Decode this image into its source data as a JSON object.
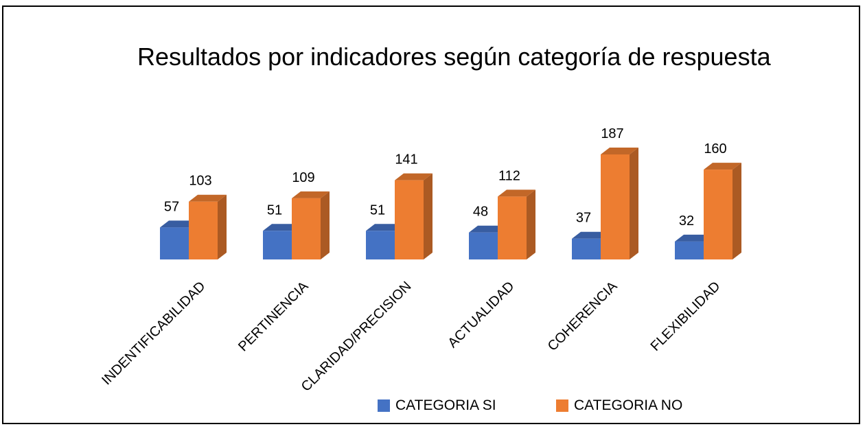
{
  "chart_data": {
    "type": "bar",
    "title": "Resultados por indicadores según categoría de respuesta",
    "categories": [
      "INDENTIFICABILIDAD",
      "PERTINENCIA",
      "CLARIDAD/PRECISION",
      "ACTUALIDAD",
      "COHERENCIA",
      "FLEXIBILIDAD"
    ],
    "series": [
      {
        "name": "CATEGORIA SI",
        "values": [
          57,
          51,
          51,
          48,
          37,
          32
        ],
        "color": "#4472C4"
      },
      {
        "name": "CATEGORIA NO",
        "values": [
          103,
          109,
          141,
          112,
          187,
          160
        ],
        "color": "#ED7D31"
      }
    ],
    "ylim": [
      0,
      187
    ],
    "grid": false,
    "legend_position": "bottom",
    "data_labels": true,
    "style": "3d-column"
  }
}
